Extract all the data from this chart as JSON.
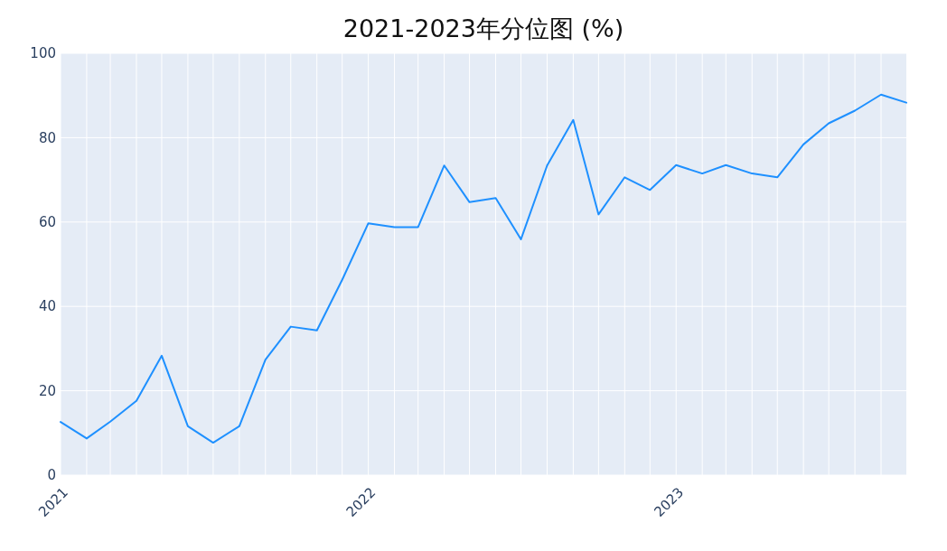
{
  "chart_data": {
    "type": "line",
    "title": "2021-2023年分位图 (%)",
    "x": [
      "2021-01",
      "2021-02",
      "2021-03",
      "2021-04",
      "2021-05",
      "2021-06",
      "2021-07",
      "2021-08",
      "2021-09",
      "2021-10",
      "2021-11",
      "2021-12",
      "2022-01",
      "2022-02",
      "2022-03",
      "2022-04",
      "2022-05",
      "2022-06",
      "2022-07",
      "2022-08",
      "2022-09",
      "2022-10",
      "2022-11",
      "2022-12",
      "2023-01",
      "2023-02",
      "2023-03",
      "2023-04",
      "2023-05",
      "2023-06",
      "2023-07",
      "2023-08",
      "2023-09",
      "2023-10"
    ],
    "series": [
      {
        "color": "#1e90ff",
        "values": [
          12.6,
          8.7,
          12.7,
          17.6,
          28.3,
          11.6,
          7.7,
          11.6,
          27.4,
          35.2,
          34.3,
          46.3,
          59.7,
          58.8,
          58.8,
          73.4,
          64.7,
          65.7,
          55.9,
          73.4,
          84.2,
          61.8,
          70.6,
          67.6,
          73.5,
          71.5,
          73.5,
          71.5,
          70.6,
          78.4,
          83.4,
          86.4,
          90.2,
          88.3
        ]
      }
    ],
    "xlim": [
      "2021-01",
      "2023-10"
    ],
    "xticks": [
      {
        "value": "2021-01",
        "label": "2021"
      },
      {
        "value": "2021-02",
        "label": null
      },
      {
        "value": "2021-03",
        "label": null
      },
      {
        "value": "2021-04",
        "label": null
      },
      {
        "value": "2021-05",
        "label": null
      },
      {
        "value": "2021-06",
        "label": null
      },
      {
        "value": "2021-07",
        "label": null
      },
      {
        "value": "2021-08",
        "label": null
      },
      {
        "value": "2021-09",
        "label": null
      },
      {
        "value": "2021-10",
        "label": null
      },
      {
        "value": "2021-11",
        "label": null
      },
      {
        "value": "2021-12",
        "label": null
      },
      {
        "value": "2022-01",
        "label": "2022"
      },
      {
        "value": "2022-02",
        "label": null
      },
      {
        "value": "2022-03",
        "label": null
      },
      {
        "value": "2022-04",
        "label": null
      },
      {
        "value": "2022-05",
        "label": null
      },
      {
        "value": "2022-06",
        "label": null
      },
      {
        "value": "2022-07",
        "label": null
      },
      {
        "value": "2022-08",
        "label": null
      },
      {
        "value": "2022-09",
        "label": null
      },
      {
        "value": "2022-10",
        "label": null
      },
      {
        "value": "2022-11",
        "label": null
      },
      {
        "value": "2022-12",
        "label": null
      },
      {
        "value": "2023-01",
        "label": "2023"
      },
      {
        "value": "2023-02",
        "label": null
      },
      {
        "value": "2023-03",
        "label": null
      },
      {
        "value": "2023-04",
        "label": null
      },
      {
        "value": "2023-05",
        "label": null
      },
      {
        "value": "2023-06",
        "label": null
      },
      {
        "value": "2023-07",
        "label": null
      },
      {
        "value": "2023-08",
        "label": null
      },
      {
        "value": "2023-09",
        "label": null
      }
    ],
    "ylim": [
      0,
      100
    ],
    "yticks": [
      0,
      20,
      40,
      60,
      80,
      100
    ],
    "grid": true
  }
}
